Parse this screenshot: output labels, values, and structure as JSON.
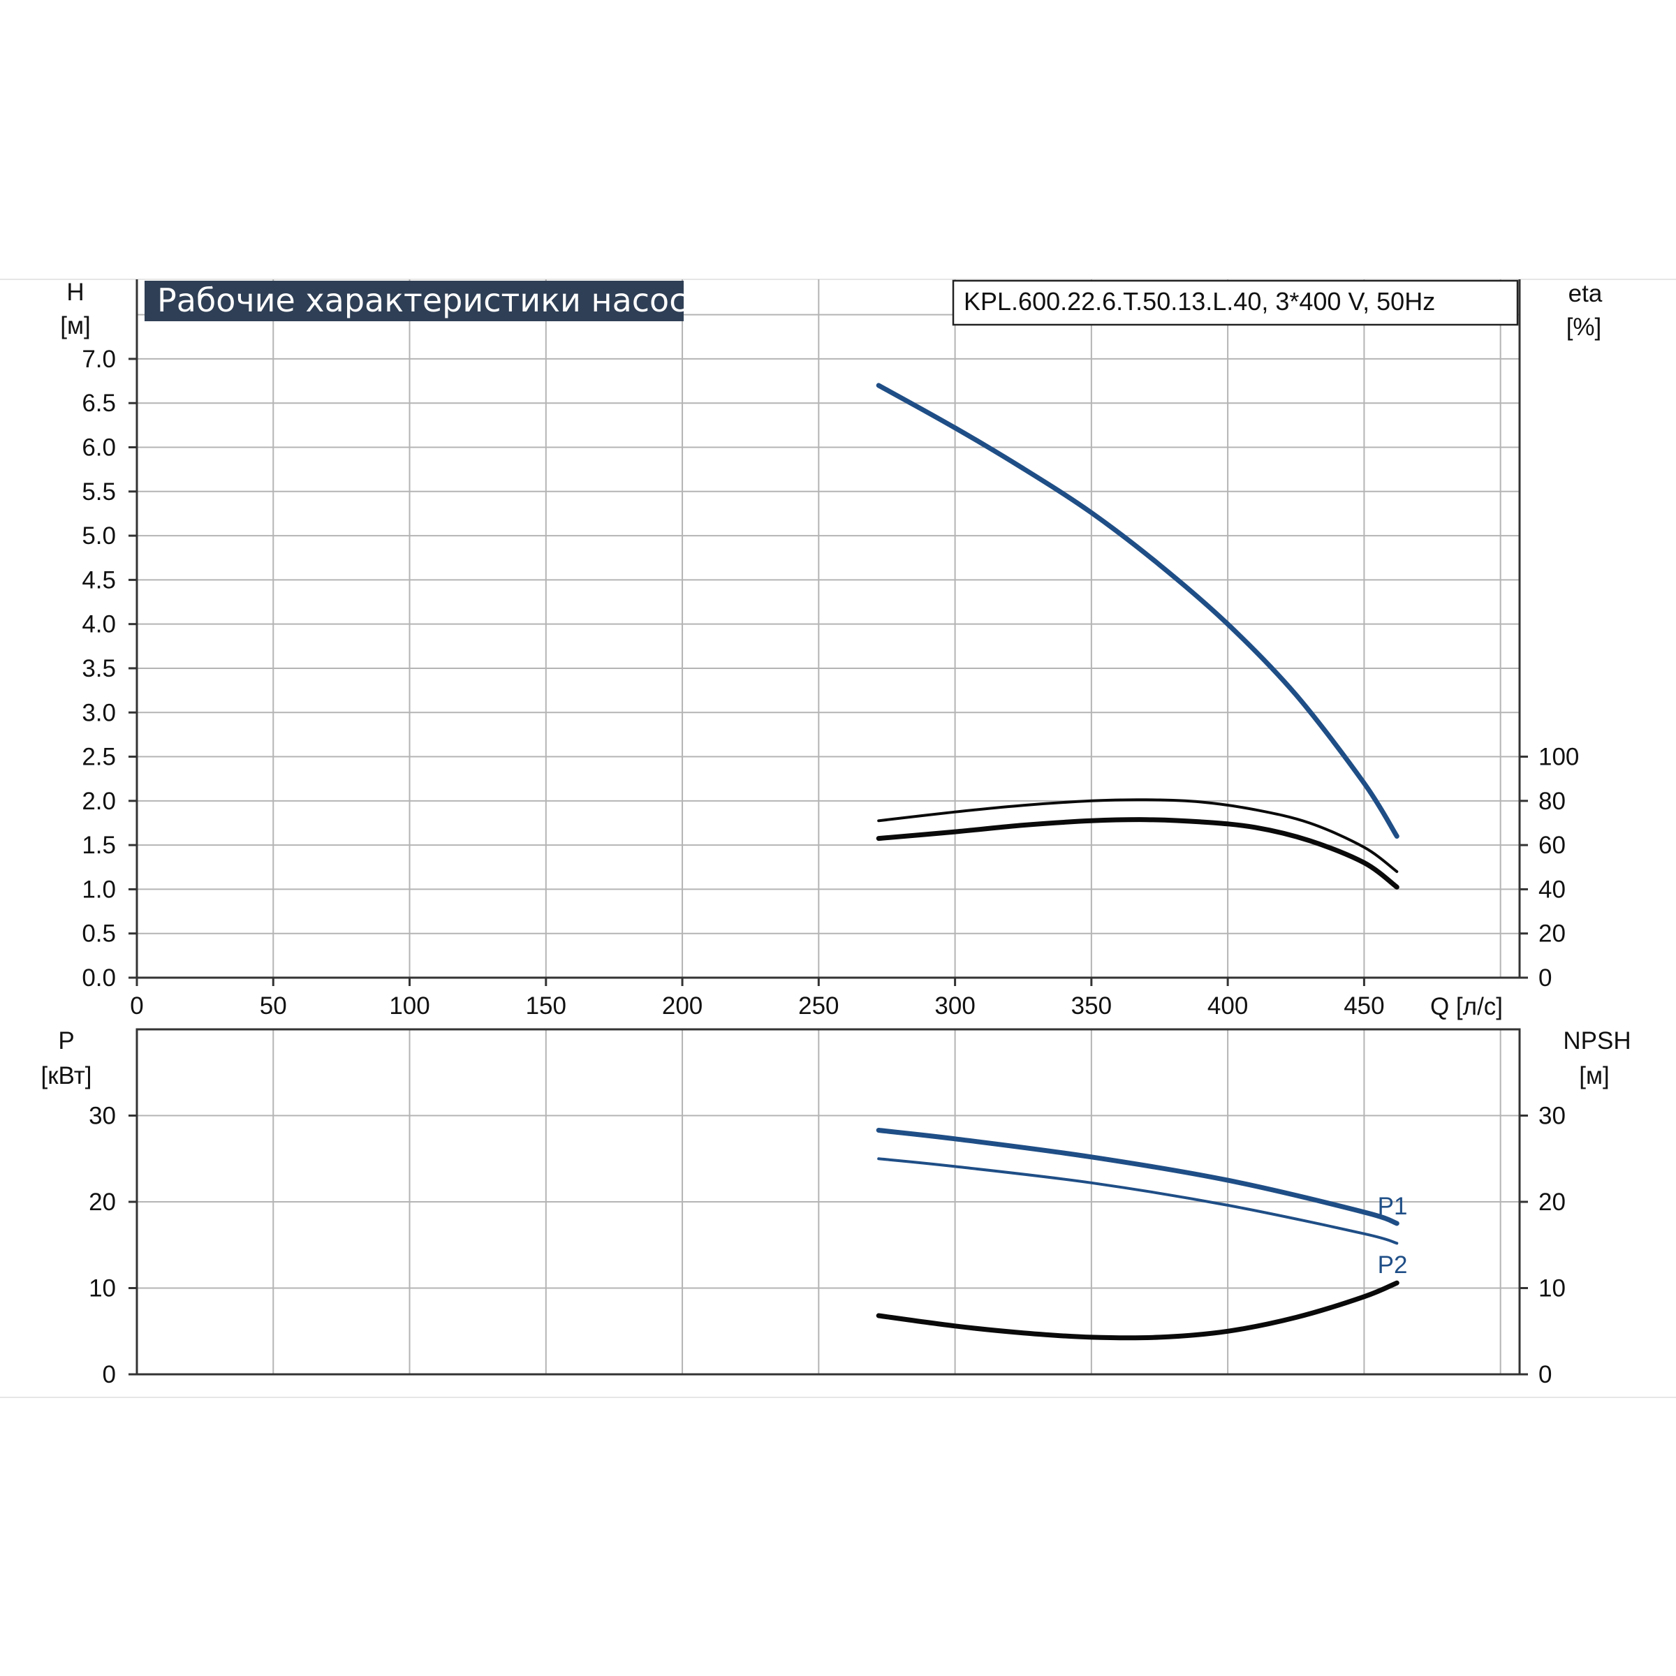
{
  "colors": {
    "blue": "#1f4e86",
    "black": "#0a0a0a",
    "grid": "#b4b4b4",
    "axis": "#333333",
    "title_bg": "#2f3f55"
  },
  "chart_data": [
    {
      "type": "line",
      "title": "Рабочие характеристики насоса",
      "model": "KPL.600.22.6.T.50.13.L.40, 3*400 V, 50Hz",
      "xlabel": "Q [л/с]",
      "ylabel_main": "H",
      "ylabel_unit": "[м]",
      "y2label_main": "eta",
      "y2label_unit": "[%]",
      "xlim": [
        0,
        507
      ],
      "ylim": [
        0,
        7.9
      ],
      "y2lim": [
        0,
        100
      ],
      "x_ticks": [
        "0",
        "50",
        "100",
        "150",
        "200",
        "250",
        "300",
        "350",
        "400",
        "450"
      ],
      "y_ticks": [
        "0.0",
        "0.5",
        "1.0",
        "1.5",
        "2.0",
        "2.5",
        "3.0",
        "3.5",
        "4.0",
        "4.5",
        "5.0",
        "5.5",
        "6.0",
        "6.5",
        "7.0"
      ],
      "y2_ticks": [
        "0",
        "20",
        "40",
        "60",
        "80",
        "100"
      ],
      "grid": true,
      "series": [
        {
          "axis": "left",
          "color": "blue",
          "x": [
            272,
            300,
            325,
            350,
            375,
            400,
            425,
            450,
            462
          ],
          "y": [
            6.7,
            6.22,
            5.76,
            5.26,
            4.67,
            4.0,
            3.2,
            2.2,
            1.6
          ]
        },
        {
          "axis": "right",
          "color": "black",
          "x": [
            272,
            300,
            325,
            350,
            370,
            390,
            410,
            430,
            450,
            462
          ],
          "y": [
            71,
            75,
            78,
            80,
            80.5,
            79.5,
            76,
            70,
            59,
            48
          ]
        },
        {
          "axis": "right",
          "color": "black",
          "x": [
            272,
            300,
            325,
            350,
            370,
            390,
            410,
            430,
            450,
            462
          ],
          "y": [
            63,
            66,
            69,
            71,
            71.5,
            70.5,
            68,
            62,
            52,
            41
          ]
        }
      ]
    },
    {
      "type": "line",
      "ylabel_main": "P",
      "ylabel_unit": "[кВт]",
      "y2label_main": "NPSH",
      "y2label_unit": "[м]",
      "xlim": [
        0,
        507
      ],
      "ylim": [
        0,
        40
      ],
      "y2lim": [
        0,
        40
      ],
      "y_ticks": [
        "0",
        "10",
        "20",
        "30"
      ],
      "y2_ticks": [
        "0",
        "10",
        "20",
        "30"
      ],
      "grid": true,
      "series": [
        {
          "name": "P1",
          "axis": "left",
          "color": "blue",
          "x": [
            272,
            300,
            350,
            400,
            450,
            462
          ],
          "y": [
            28.3,
            27.3,
            25.2,
            22.5,
            18.8,
            17.5
          ]
        },
        {
          "name": "P2",
          "axis": "left",
          "color": "blue",
          "x": [
            272,
            300,
            350,
            400,
            450,
            462
          ],
          "y": [
            25.0,
            24.1,
            22.2,
            19.6,
            16.3,
            15.2
          ]
        },
        {
          "axis": "right",
          "color": "black",
          "x": [
            272,
            300,
            325,
            350,
            375,
            400,
            425,
            450,
            462
          ],
          "y": [
            6.8,
            5.6,
            4.8,
            4.3,
            4.3,
            5.0,
            6.6,
            9.0,
            10.6
          ]
        }
      ]
    }
  ]
}
